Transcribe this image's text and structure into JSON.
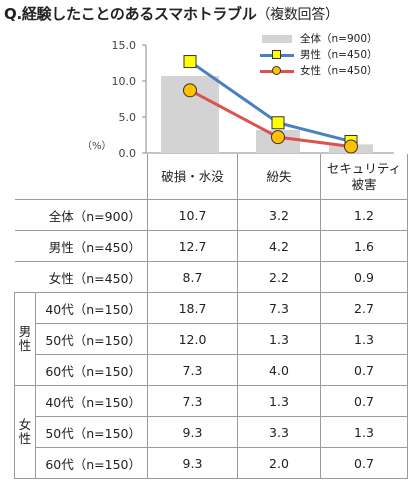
{
  "title": "Q.経験したことのあるスマホトラブル",
  "subtitle": "（複数回答）",
  "unit_label": "（%）",
  "columns": [
    "破損・水没",
    "紛失",
    "セキュリティ被害"
  ],
  "column_lines": [
    [
      "破損・水没"
    ],
    [
      "紛失"
    ],
    [
      "セキュリティ",
      "被害"
    ]
  ],
  "legend": [
    {
      "label": "全体（n=900）",
      "type": "bar",
      "color": "#d3d3d3"
    },
    {
      "label": "男性（n=450）",
      "type": "line",
      "color": "#4a7fc1",
      "marker": "square",
      "marker_color": "#ffff00"
    },
    {
      "label": "女性（n=450）",
      "type": "line",
      "color": "#d9534f",
      "marker": "circle",
      "marker_color": "#ffc000"
    }
  ],
  "chart_data": {
    "type": "bar",
    "categories": [
      "破損・水没",
      "紛失",
      "セキュリティ被害"
    ],
    "ylim": [
      0,
      15
    ],
    "yticks": [
      "0.0",
      "5.0",
      "10.0",
      "15.0"
    ],
    "ylabel": "（%）",
    "series": [
      {
        "name": "全体（n=900）",
        "type": "bar",
        "values": [
          10.7,
          3.2,
          1.2
        ]
      },
      {
        "name": "男性（n=450）",
        "type": "line",
        "values": [
          12.7,
          4.2,
          1.6
        ]
      },
      {
        "name": "女性（n=450）",
        "type": "line",
        "values": [
          8.7,
          2.2,
          0.9
        ]
      }
    ]
  },
  "table": {
    "rows": [
      {
        "label": "全体（n=900）",
        "values": [
          "10.7",
          "3.2",
          "1.2"
        ]
      },
      {
        "label": "男性（n=450）",
        "values": [
          "12.7",
          "4.2",
          "1.6"
        ]
      },
      {
        "label": "女性（n=450）",
        "values": [
          "8.7",
          "2.2",
          "0.9"
        ]
      }
    ],
    "groups": [
      {
        "label": "男性",
        "rows": [
          {
            "label": "40代（n=150）",
            "values": [
              "18.7",
              "7.3",
              "2.7"
            ]
          },
          {
            "label": "50代（n=150）",
            "values": [
              "12.0",
              "1.3",
              "1.3"
            ]
          },
          {
            "label": "60代（n=150）",
            "values": [
              "7.3",
              "4.0",
              "0.7"
            ]
          }
        ]
      },
      {
        "label": "女性",
        "rows": [
          {
            "label": "40代（n=150）",
            "values": [
              "7.3",
              "1.3",
              "0.7"
            ]
          },
          {
            "label": "50代（n=150）",
            "values": [
              "9.3",
              "3.3",
              "1.3"
            ]
          },
          {
            "label": "60代（n=150）",
            "values": [
              "9.3",
              "2.0",
              "0.7"
            ]
          }
        ]
      }
    ]
  }
}
